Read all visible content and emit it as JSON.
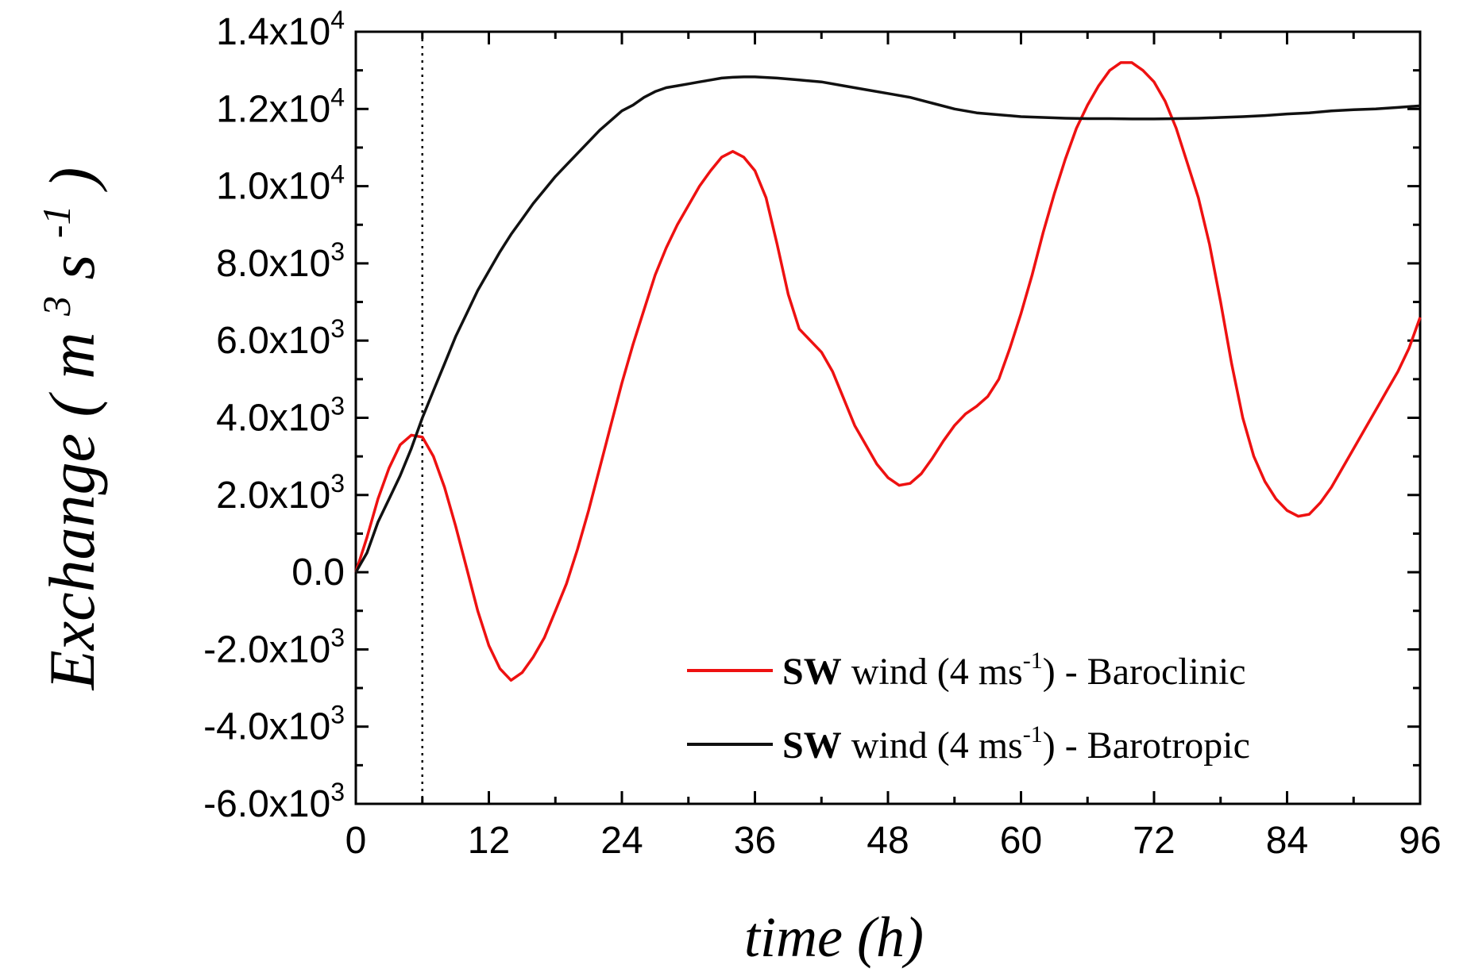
{
  "chart_data": {
    "type": "line",
    "title": "",
    "xlabel": "time (h)",
    "ylabel": "Exchange (m³s⁻¹)",
    "ylabel_parts": {
      "main": "Exchange",
      "unit": "m",
      "unit_exp": "3",
      "unit2": "s",
      "unit2_exp": "-1"
    },
    "xlim": [
      0,
      96
    ],
    "ylim": [
      -6000,
      14000
    ],
    "x_ticks": [
      {
        "value": 0,
        "label": "0"
      },
      {
        "value": 12,
        "label": "12"
      },
      {
        "value": 24,
        "label": "24"
      },
      {
        "value": 36,
        "label": "36"
      },
      {
        "value": 48,
        "label": "48"
      },
      {
        "value": 60,
        "label": "60"
      },
      {
        "value": 72,
        "label": "72"
      },
      {
        "value": 84,
        "label": "84"
      },
      {
        "value": 96,
        "label": "96"
      }
    ],
    "y_ticks": [
      {
        "value": 14000,
        "mant": "1.4x10",
        "exp": "4"
      },
      {
        "value": 12000,
        "mant": "1.2x10",
        "exp": "4"
      },
      {
        "value": 10000,
        "mant": "1.0x10",
        "exp": "4"
      },
      {
        "value": 8000,
        "mant": "8.0x10",
        "exp": "3"
      },
      {
        "value": 6000,
        "mant": "6.0x10",
        "exp": "3"
      },
      {
        "value": 4000,
        "mant": "4.0x10",
        "exp": "3"
      },
      {
        "value": 2000,
        "mant": "2.0x10",
        "exp": "3"
      },
      {
        "value": 0,
        "mant": "0.0",
        "exp": ""
      },
      {
        "value": -2000,
        "mant": "-2.0x10",
        "exp": "3"
      },
      {
        "value": -4000,
        "mant": "-4.0x10",
        "exp": "3"
      },
      {
        "value": -6000,
        "mant": "-6.0x10",
        "exp": "3"
      }
    ],
    "vline_x": 6,
    "grid": false,
    "legend_position": "bottom-right",
    "series": [
      {
        "name": "SW wind (4 ms-1) - Baroclinic",
        "legend": {
          "bold": "SW",
          "pre": " wind (4 ms",
          "sup": "-1",
          "post": ") - Baroclinic"
        },
        "color": "#ee1111",
        "points": [
          [
            0,
            0
          ],
          [
            1,
            900
          ],
          [
            2,
            1900
          ],
          [
            3,
            2700
          ],
          [
            4,
            3300
          ],
          [
            5,
            3550
          ],
          [
            6,
            3500
          ],
          [
            7,
            3000
          ],
          [
            8,
            2200
          ],
          [
            9,
            1200
          ],
          [
            10,
            100
          ],
          [
            11,
            -1000
          ],
          [
            12,
            -1900
          ],
          [
            13,
            -2500
          ],
          [
            14,
            -2800
          ],
          [
            15,
            -2600
          ],
          [
            16,
            -2200
          ],
          [
            17,
            -1700
          ],
          [
            18,
            -1000
          ],
          [
            19,
            -300
          ],
          [
            20,
            600
          ],
          [
            21,
            1600
          ],
          [
            22,
            2700
          ],
          [
            23,
            3800
          ],
          [
            24,
            4900
          ],
          [
            25,
            5900
          ],
          [
            26,
            6800
          ],
          [
            27,
            7700
          ],
          [
            28,
            8400
          ],
          [
            29,
            9000
          ],
          [
            30,
            9500
          ],
          [
            31,
            10000
          ],
          [
            32,
            10400
          ],
          [
            33,
            10750
          ],
          [
            34,
            10900
          ],
          [
            35,
            10750
          ],
          [
            36,
            10400
          ],
          [
            37,
            9700
          ],
          [
            38,
            8500
          ],
          [
            39,
            7200
          ],
          [
            40,
            6300
          ],
          [
            41,
            6000
          ],
          [
            42,
            5700
          ],
          [
            43,
            5200
          ],
          [
            44,
            4500
          ],
          [
            45,
            3800
          ],
          [
            46,
            3300
          ],
          [
            47,
            2800
          ],
          [
            48,
            2450
          ],
          [
            49,
            2250
          ],
          [
            50,
            2300
          ],
          [
            51,
            2550
          ],
          [
            52,
            2950
          ],
          [
            53,
            3400
          ],
          [
            54,
            3800
          ],
          [
            55,
            4100
          ],
          [
            56,
            4300
          ],
          [
            57,
            4550
          ],
          [
            58,
            5000
          ],
          [
            59,
            5800
          ],
          [
            60,
            6700
          ],
          [
            61,
            7700
          ],
          [
            62,
            8800
          ],
          [
            63,
            9800
          ],
          [
            64,
            10700
          ],
          [
            65,
            11500
          ],
          [
            66,
            12100
          ],
          [
            67,
            12600
          ],
          [
            68,
            13000
          ],
          [
            69,
            13200
          ],
          [
            70,
            13200
          ],
          [
            71,
            13000
          ],
          [
            72,
            12700
          ],
          [
            73,
            12200
          ],
          [
            74,
            11500
          ],
          [
            75,
            10600
          ],
          [
            76,
            9700
          ],
          [
            77,
            8500
          ],
          [
            78,
            7000
          ],
          [
            79,
            5400
          ],
          [
            80,
            4000
          ],
          [
            81,
            3000
          ],
          [
            82,
            2350
          ],
          [
            83,
            1900
          ],
          [
            84,
            1600
          ],
          [
            85,
            1450
          ],
          [
            86,
            1500
          ],
          [
            87,
            1800
          ],
          [
            88,
            2200
          ],
          [
            89,
            2700
          ],
          [
            90,
            3200
          ],
          [
            91,
            3700
          ],
          [
            92,
            4200
          ],
          [
            93,
            4700
          ],
          [
            94,
            5200
          ],
          [
            95,
            5800
          ],
          [
            96,
            6600
          ]
        ]
      },
      {
        "name": "SW wind (4 ms-1) - Barotropic",
        "legend": {
          "bold": "SW",
          "pre": " wind (4 ms",
          "sup": "-1",
          "post": ") - Barotropic"
        },
        "color": "#111111",
        "points": [
          [
            0,
            0
          ],
          [
            1,
            500
          ],
          [
            2,
            1300
          ],
          [
            3,
            1900
          ],
          [
            4,
            2500
          ],
          [
            5,
            3200
          ],
          [
            6,
            4000
          ],
          [
            7,
            4700
          ],
          [
            8,
            5400
          ],
          [
            9,
            6100
          ],
          [
            10,
            6700
          ],
          [
            11,
            7300
          ],
          [
            12,
            7800
          ],
          [
            13,
            8300
          ],
          [
            14,
            8750
          ],
          [
            15,
            9150
          ],
          [
            16,
            9550
          ],
          [
            17,
            9900
          ],
          [
            18,
            10250
          ],
          [
            19,
            10550
          ],
          [
            20,
            10850
          ],
          [
            21,
            11150
          ],
          [
            22,
            11450
          ],
          [
            23,
            11700
          ],
          [
            24,
            11950
          ],
          [
            25,
            12100
          ],
          [
            26,
            12300
          ],
          [
            27,
            12450
          ],
          [
            28,
            12550
          ],
          [
            29,
            12600
          ],
          [
            30,
            12650
          ],
          [
            31,
            12700
          ],
          [
            32,
            12750
          ],
          [
            33,
            12800
          ],
          [
            34,
            12820
          ],
          [
            35,
            12830
          ],
          [
            36,
            12830
          ],
          [
            38,
            12800
          ],
          [
            40,
            12750
          ],
          [
            42,
            12700
          ],
          [
            44,
            12600
          ],
          [
            46,
            12500
          ],
          [
            48,
            12400
          ],
          [
            50,
            12300
          ],
          [
            52,
            12150
          ],
          [
            54,
            12000
          ],
          [
            56,
            11900
          ],
          [
            58,
            11850
          ],
          [
            60,
            11800
          ],
          [
            62,
            11780
          ],
          [
            64,
            11760
          ],
          [
            66,
            11750
          ],
          [
            68,
            11750
          ],
          [
            70,
            11740
          ],
          [
            72,
            11740
          ],
          [
            74,
            11750
          ],
          [
            76,
            11760
          ],
          [
            78,
            11780
          ],
          [
            80,
            11800
          ],
          [
            82,
            11830
          ],
          [
            84,
            11870
          ],
          [
            86,
            11900
          ],
          [
            88,
            11950
          ],
          [
            90,
            11980
          ],
          [
            92,
            12000
          ],
          [
            94,
            12040
          ],
          [
            96,
            12080
          ]
        ]
      }
    ]
  }
}
